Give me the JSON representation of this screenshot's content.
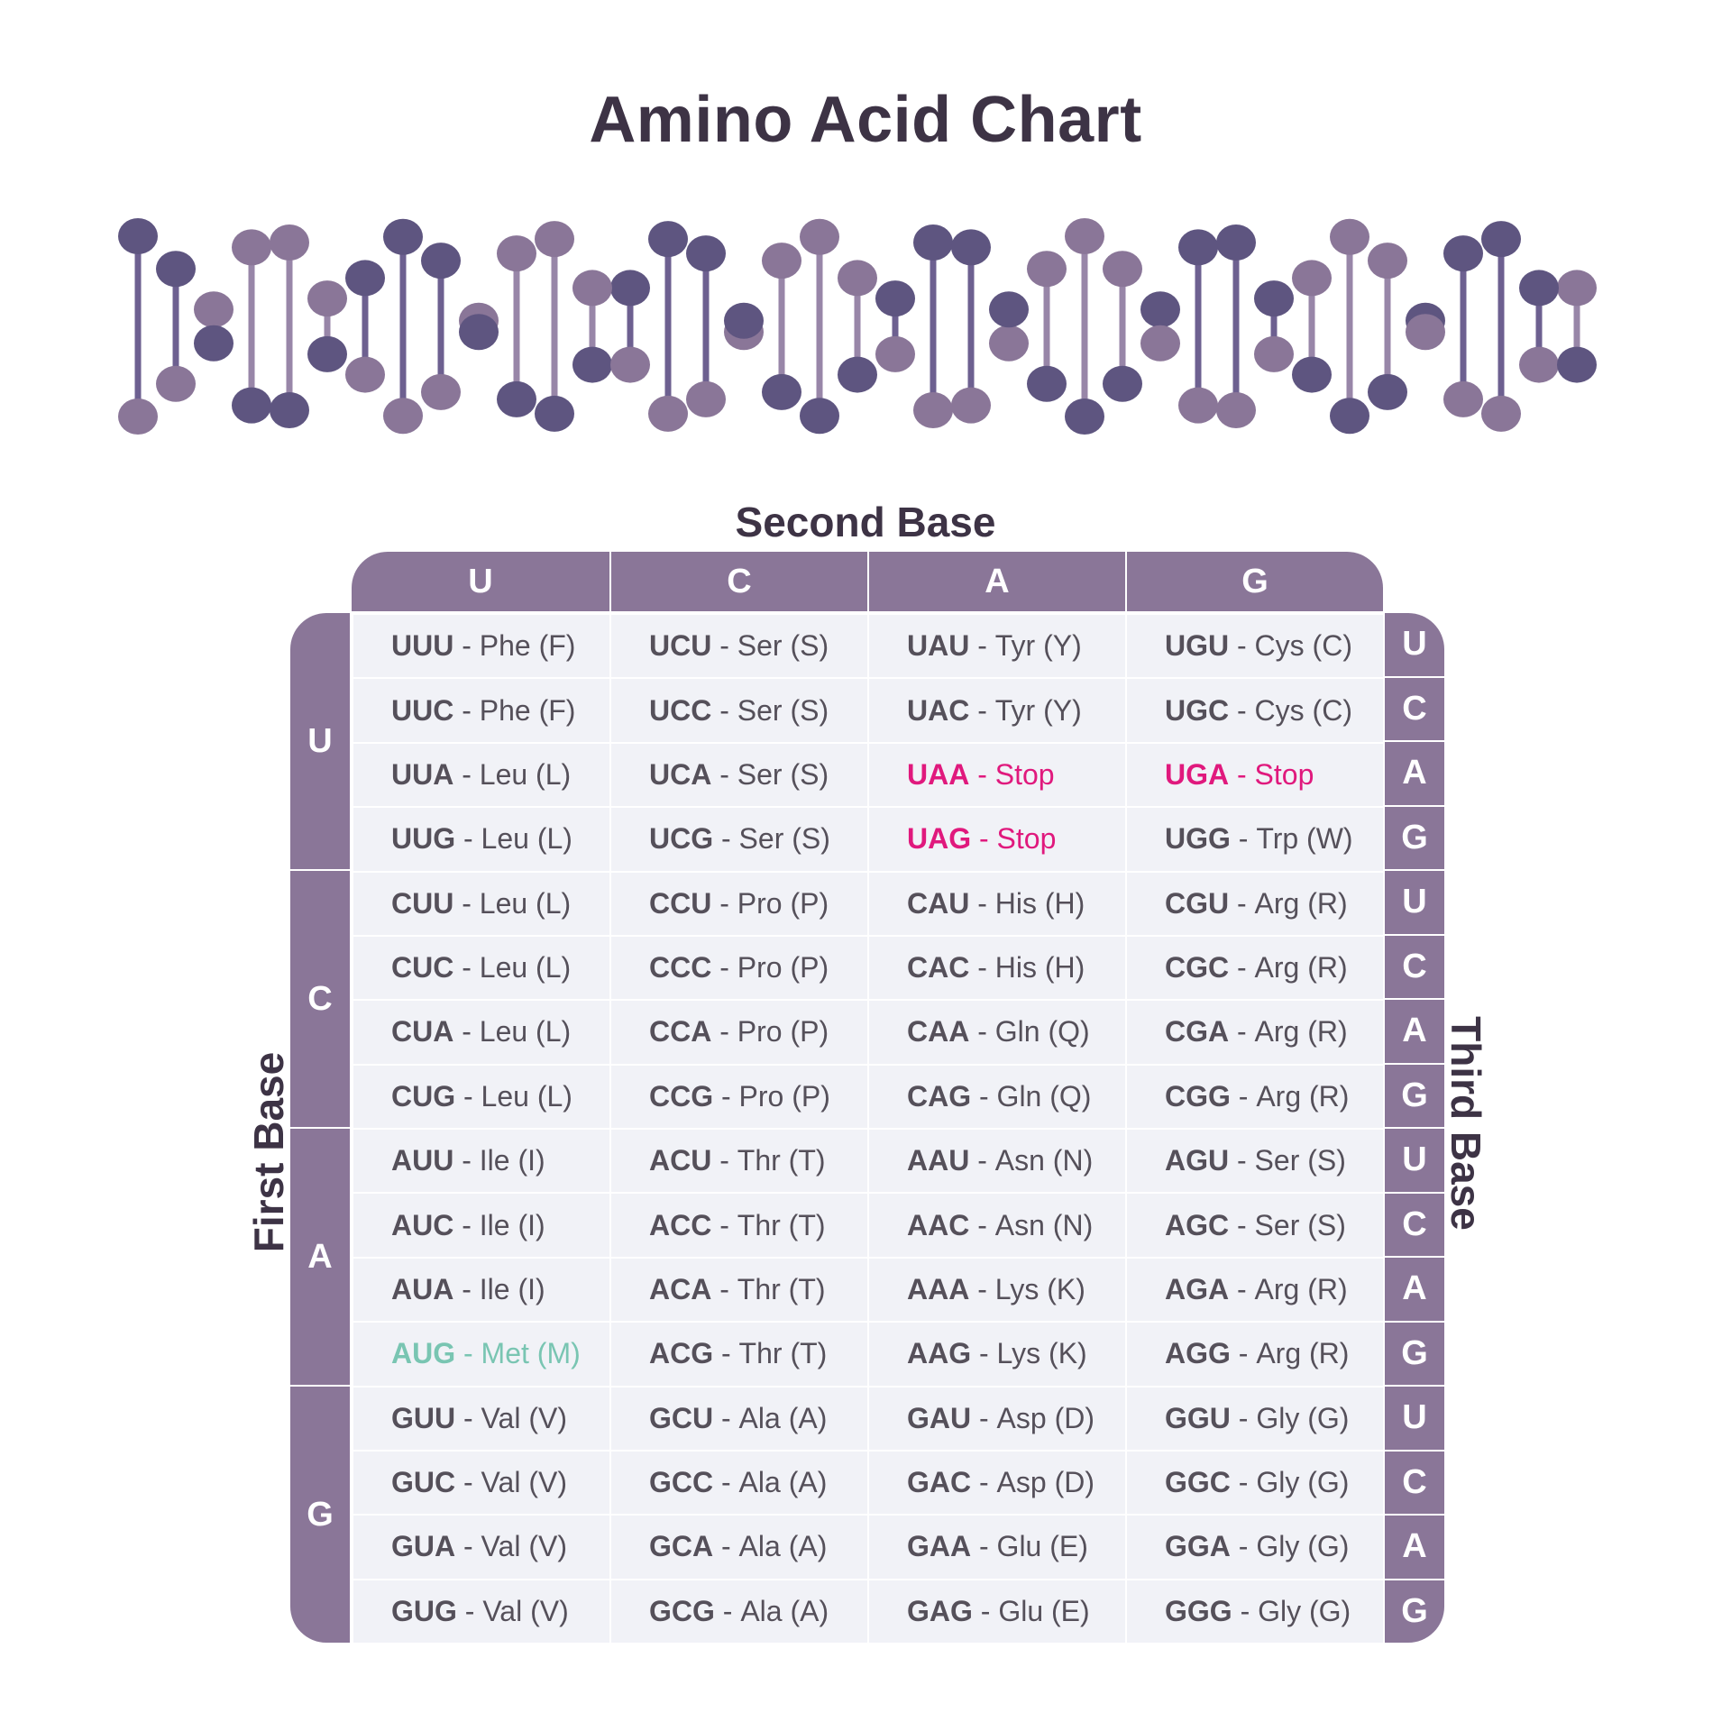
{
  "title": "Amino Acid Chart",
  "colors": {
    "accent": "#8a7698",
    "helix_dark": "#5e5580",
    "helix_light": "#8a7698",
    "stop": "#e0197d",
    "start": "#79c5b2",
    "cell_bg": "#f1f2f7"
  },
  "labels": {
    "second_base": "Second Base",
    "first_base": "First Base",
    "third_base": "Third Base"
  },
  "second_base": [
    "U",
    "C",
    "A",
    "G"
  ],
  "first_base": [
    "U",
    "C",
    "A",
    "G"
  ],
  "third_base": [
    "U",
    "C",
    "A",
    "G",
    "U",
    "C",
    "A",
    "G",
    "U",
    "C",
    "A",
    "G",
    "U",
    "C",
    "A",
    "G"
  ],
  "rows": [
    [
      {
        "codon": "UUU",
        "aa": "Phe (F)"
      },
      {
        "codon": "UCU",
        "aa": "Ser (S)"
      },
      {
        "codon": "UAU",
        "aa": "Tyr (Y)"
      },
      {
        "codon": "UGU",
        "aa": "Cys (C)"
      }
    ],
    [
      {
        "codon": "UUC",
        "aa": "Phe (F)"
      },
      {
        "codon": "UCC",
        "aa": "Ser (S)"
      },
      {
        "codon": "UAC",
        "aa": "Tyr (Y)"
      },
      {
        "codon": "UGC",
        "aa": "Cys (C)"
      }
    ],
    [
      {
        "codon": "UUA",
        "aa": "Leu (L)"
      },
      {
        "codon": "UCA",
        "aa": "Ser (S)"
      },
      {
        "codon": "UAA",
        "aa": "Stop",
        "type": "stop"
      },
      {
        "codon": "UGA",
        "aa": "Stop",
        "type": "stop"
      }
    ],
    [
      {
        "codon": "UUG",
        "aa": "Leu (L)"
      },
      {
        "codon": "UCG",
        "aa": "Ser (S)"
      },
      {
        "codon": "UAG",
        "aa": "Stop",
        "type": "stop"
      },
      {
        "codon": "UGG",
        "aa": "Trp (W)"
      }
    ],
    [
      {
        "codon": "CUU",
        "aa": "Leu (L)"
      },
      {
        "codon": "CCU",
        "aa": "Pro (P)"
      },
      {
        "codon": "CAU",
        "aa": "His (H)"
      },
      {
        "codon": "CGU",
        "aa": "Arg (R)"
      }
    ],
    [
      {
        "codon": "CUC",
        "aa": "Leu (L)"
      },
      {
        "codon": "CCC",
        "aa": "Pro (P)"
      },
      {
        "codon": "CAC",
        "aa": "His (H)"
      },
      {
        "codon": "CGC",
        "aa": "Arg (R)"
      }
    ],
    [
      {
        "codon": "CUA",
        "aa": "Leu (L)"
      },
      {
        "codon": "CCA",
        "aa": "Pro (P)"
      },
      {
        "codon": "CAA",
        "aa": "Gln (Q)"
      },
      {
        "codon": "CGA",
        "aa": "Arg (R)"
      }
    ],
    [
      {
        "codon": "CUG",
        "aa": "Leu (L)"
      },
      {
        "codon": "CCG",
        "aa": "Pro (P)"
      },
      {
        "codon": "CAG",
        "aa": "Gln (Q)"
      },
      {
        "codon": "CGG",
        "aa": "Arg (R)"
      }
    ],
    [
      {
        "codon": "AUU",
        "aa": "Ile (I)"
      },
      {
        "codon": "ACU",
        "aa": "Thr (T)"
      },
      {
        "codon": "AAU",
        "aa": "Asn (N)"
      },
      {
        "codon": "AGU",
        "aa": "Ser (S)"
      }
    ],
    [
      {
        "codon": "AUC",
        "aa": "Ile (I)"
      },
      {
        "codon": "ACC",
        "aa": "Thr (T)"
      },
      {
        "codon": "AAC",
        "aa": "Asn (N)"
      },
      {
        "codon": "AGC",
        "aa": "Ser (S)"
      }
    ],
    [
      {
        "codon": "AUA",
        "aa": "Ile (I)"
      },
      {
        "codon": "ACA",
        "aa": "Thr (T)"
      },
      {
        "codon": "AAA",
        "aa": "Lys (K)"
      },
      {
        "codon": "AGA",
        "aa": "Arg (R)"
      }
    ],
    [
      {
        "codon": "AUG",
        "aa": "Met (M)",
        "type": "start"
      },
      {
        "codon": "ACG",
        "aa": "Thr (T)"
      },
      {
        "codon": "AAG",
        "aa": "Lys (K)"
      },
      {
        "codon": "AGG",
        "aa": "Arg (R)"
      }
    ],
    [
      {
        "codon": "GUU",
        "aa": "Val (V)"
      },
      {
        "codon": "GCU",
        "aa": "Ala (A)"
      },
      {
        "codon": "GAU",
        "aa": "Asp (D)"
      },
      {
        "codon": "GGU",
        "aa": "Gly (G)"
      }
    ],
    [
      {
        "codon": "GUC",
        "aa": "Val (V)"
      },
      {
        "codon": "GCC",
        "aa": "Ala (A)"
      },
      {
        "codon": "GAC",
        "aa": "Asp (D)"
      },
      {
        "codon": "GGC",
        "aa": "Gly (G)"
      }
    ],
    [
      {
        "codon": "GUA",
        "aa": "Val (V)"
      },
      {
        "codon": "GCA",
        "aa": "Ala (A)"
      },
      {
        "codon": "GAA",
        "aa": "Glu (E)"
      },
      {
        "codon": "GGA",
        "aa": "Gly (G)"
      }
    ],
    [
      {
        "codon": "GUG",
        "aa": "Val (V)"
      },
      {
        "codon": "GCG",
        "aa": "Ala (A)"
      },
      {
        "codon": "GAG",
        "aa": "Glu (E)"
      },
      {
        "codon": "GGG",
        "aa": "Gly (G)"
      }
    ]
  ]
}
